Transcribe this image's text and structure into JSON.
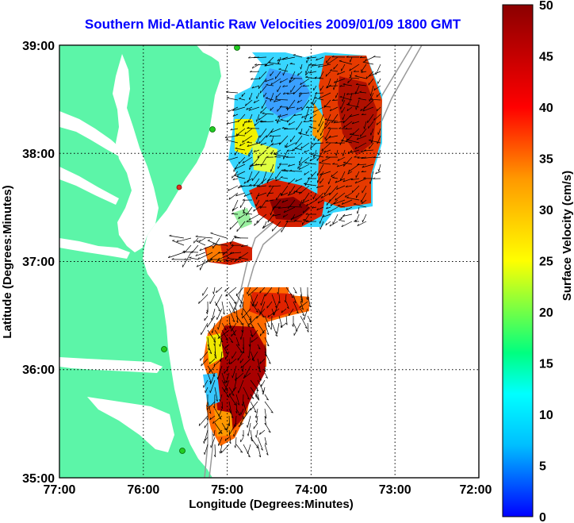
{
  "title": "Southern Mid-Atlantic Raw Velocities 2009/01/09 1800 GMT",
  "x_axis": {
    "label": "Longitude (Degrees:Minutes)",
    "ticks": [
      "77:00",
      "76:00",
      "75:00",
      "74:00",
      "73:00",
      "72:00"
    ]
  },
  "y_axis": {
    "label": "Latitude (Degrees:Minutes)",
    "ticks": [
      "39:00",
      "38:00",
      "37:00",
      "36:00",
      "35:00"
    ]
  },
  "colorbar": {
    "label": "Surface Velocity (cm/s)",
    "ticks": [
      "50",
      "45",
      "40",
      "35",
      "30",
      "25",
      "20",
      "15",
      "10",
      "5",
      "0"
    ],
    "range": [
      0,
      50
    ],
    "colormap": [
      "#0000ff",
      "#00bfff",
      "#00ffff",
      "#00ff80",
      "#ffff00",
      "#ff9900",
      "#ff0000",
      "#8b0000"
    ]
  },
  "map": {
    "lon_range": [
      -77,
      -72
    ],
    "lat_range": [
      35,
      39
    ],
    "land_color": "#5cf5a8",
    "grid": true
  },
  "stations": [
    {
      "color": "#22cc22"
    },
    {
      "color": "#22cc22"
    },
    {
      "color": "#dd3322"
    },
    {
      "color": "#22cc22"
    },
    {
      "color": "#22cc22"
    }
  ]
}
